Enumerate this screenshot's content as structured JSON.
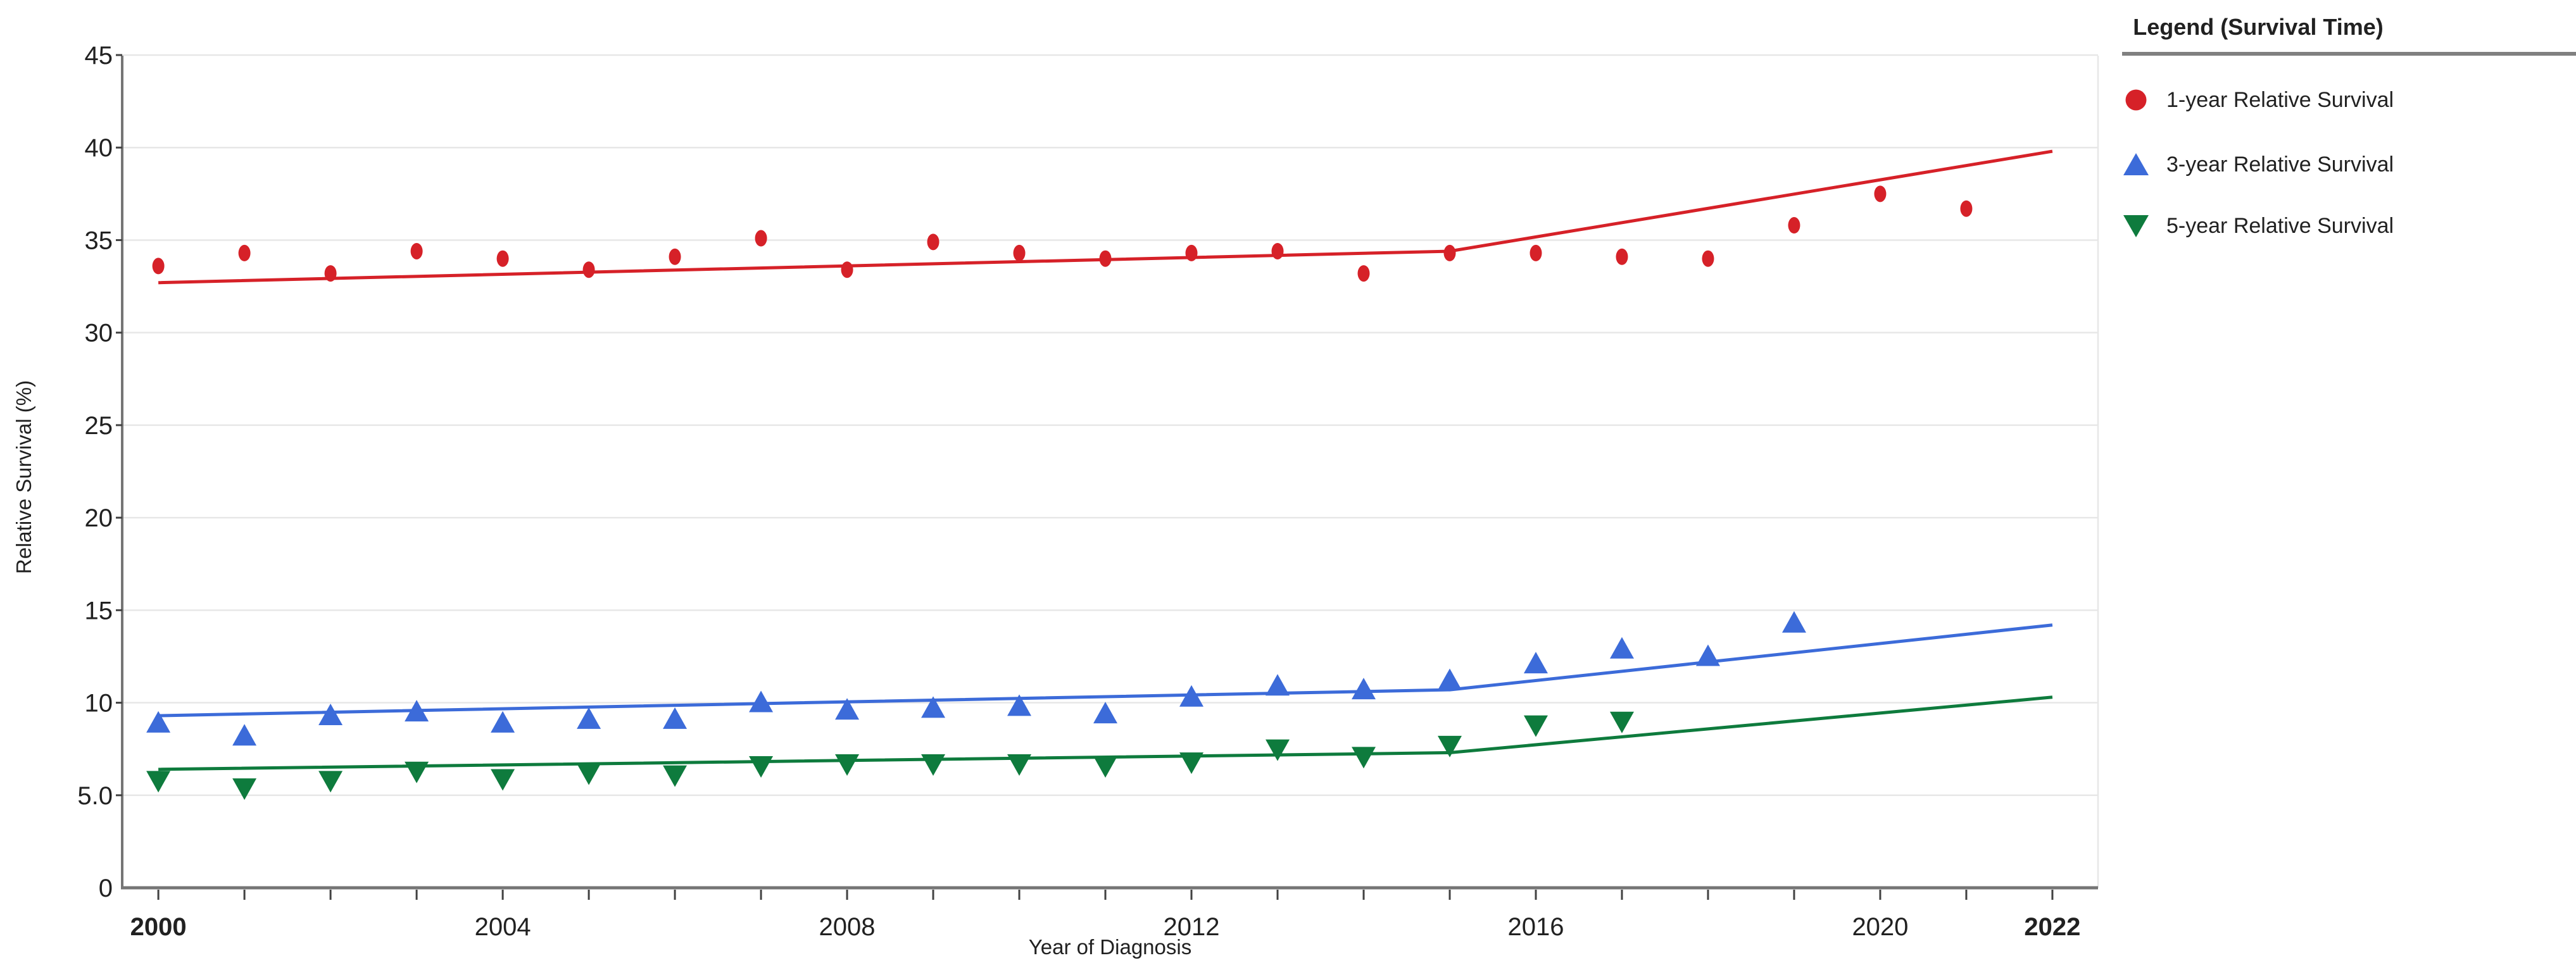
{
  "chart_data": {
    "type": "scatter",
    "title": "",
    "xlabel": "Year of Diagnosis",
    "ylabel": "Relative Survival (%)",
    "xlim": [
      1999.58,
      2022.53
    ],
    "ylim": [
      0,
      45
    ],
    "grid": {
      "horizontal": true,
      "vertical": false
    },
    "x_minor_tick_years": [
      2000,
      2001,
      2002,
      2003,
      2004,
      2005,
      2006,
      2007,
      2008,
      2009,
      2010,
      2011,
      2012,
      2013,
      2014,
      2015,
      2016,
      2017,
      2018,
      2019,
      2020,
      2021,
      2022
    ],
    "x_tick_labels": [
      {
        "year": 2000,
        "label": "2000",
        "bold": true
      },
      {
        "year": 2004,
        "label": "2004",
        "bold": false
      },
      {
        "year": 2008,
        "label": "2008",
        "bold": false
      },
      {
        "year": 2012,
        "label": "2012",
        "bold": false
      },
      {
        "year": 2016,
        "label": "2016",
        "bold": false
      },
      {
        "year": 2020,
        "label": "2020",
        "bold": false
      },
      {
        "year": 2022,
        "label": "2022",
        "bold": true
      }
    ],
    "y_ticks": [
      {
        "value": 0,
        "label": "0"
      },
      {
        "value": 5,
        "label": "5.0"
      },
      {
        "value": 10,
        "label": "10"
      },
      {
        "value": 15,
        "label": "15"
      },
      {
        "value": 20,
        "label": "20"
      },
      {
        "value": 25,
        "label": "25"
      },
      {
        "value": 30,
        "label": "30"
      },
      {
        "value": 35,
        "label": "35"
      },
      {
        "value": 40,
        "label": "40"
      },
      {
        "value": 45,
        "label": "45"
      }
    ],
    "legend": {
      "title": "Legend (Survival Time)",
      "position": "right"
    },
    "colors": {
      "grid": "#e7e7e7",
      "axis": "#757575",
      "tick": "#424242",
      "text": "#212121",
      "background": "#ffffff"
    },
    "series": [
      {
        "name": "1-year Relative Survival",
        "color": "#d62128",
        "marker": "circle",
        "x": [
          2000,
          2001,
          2002,
          2003,
          2004,
          2005,
          2006,
          2007,
          2008,
          2009,
          2010,
          2011,
          2012,
          2013,
          2014,
          2015,
          2016,
          2017,
          2018,
          2019,
          2020,
          2021
        ],
        "values": [
          33.6,
          34.3,
          33.2,
          34.4,
          34.0,
          33.4,
          34.1,
          35.1,
          33.4,
          34.9,
          34.3,
          34.0,
          34.3,
          34.4,
          33.2,
          34.3,
          34.3,
          34.1,
          34.0,
          35.8,
          37.5,
          36.7
        ],
        "trend": [
          [
            2000,
            32.7
          ],
          [
            2015,
            34.4
          ],
          [
            2022,
            39.8
          ]
        ]
      },
      {
        "name": "3-year Relative Survival",
        "color": "#3c6bd9",
        "marker": "triangle-up",
        "x": [
          2000,
          2001,
          2002,
          2003,
          2004,
          2005,
          2006,
          2007,
          2008,
          2009,
          2010,
          2011,
          2012,
          2013,
          2014,
          2015,
          2016,
          2017,
          2018,
          2019
        ],
        "values": [
          8.9,
          8.2,
          9.3,
          9.5,
          8.9,
          9.1,
          9.1,
          10.0,
          9.6,
          9.7,
          9.8,
          9.4,
          10.3,
          10.9,
          10.7,
          11.2,
          12.1,
          12.9,
          12.5,
          14.3
        ],
        "trend": [
          [
            2000,
            9.3
          ],
          [
            2015,
            10.7
          ],
          [
            2022,
            14.2
          ]
        ]
      },
      {
        "name": "5-year Relative Survival",
        "color": "#0e7b3d",
        "marker": "triangle-down",
        "x": [
          2000,
          2001,
          2002,
          2003,
          2004,
          2005,
          2006,
          2007,
          2008,
          2009,
          2010,
          2011,
          2012,
          2013,
          2014,
          2015,
          2016,
          2017
        ],
        "values": [
          5.8,
          5.4,
          5.8,
          6.3,
          5.9,
          6.2,
          6.1,
          6.6,
          6.7,
          6.7,
          6.7,
          6.6,
          6.8,
          7.5,
          7.1,
          7.7,
          8.8,
          9.0
        ],
        "trend": [
          [
            2000,
            6.4
          ],
          [
            2015,
            7.3
          ],
          [
            2022,
            10.3
          ]
        ]
      }
    ]
  }
}
